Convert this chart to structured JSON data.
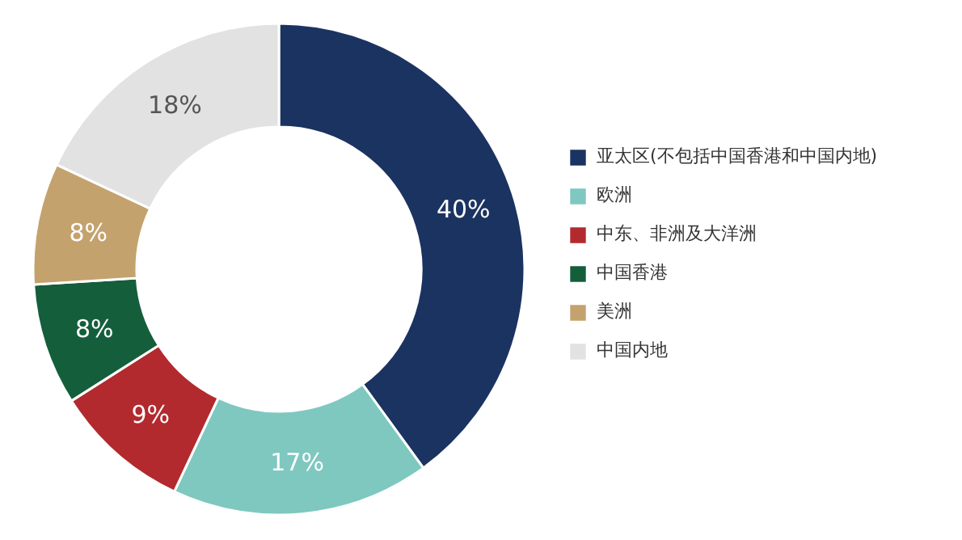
{
  "chart_data": {
    "type": "donut",
    "categories": [
      "亚太区(不包括中国香港和中国内地)",
      "欧洲",
      "中东、非洲及大洋洲",
      "中国香港",
      "美洲",
      "中国内地"
    ],
    "values": [
      40,
      17,
      9,
      8,
      8,
      18
    ],
    "value_labels": [
      "40%",
      "17%",
      "9%",
      "8%",
      "8%",
      "18%"
    ],
    "colors": [
      "#1b3361",
      "#7ec8c0",
      "#b22a2e",
      "#145e3c",
      "#c4a26d",
      "#e2e2e2"
    ],
    "legend": "right"
  }
}
